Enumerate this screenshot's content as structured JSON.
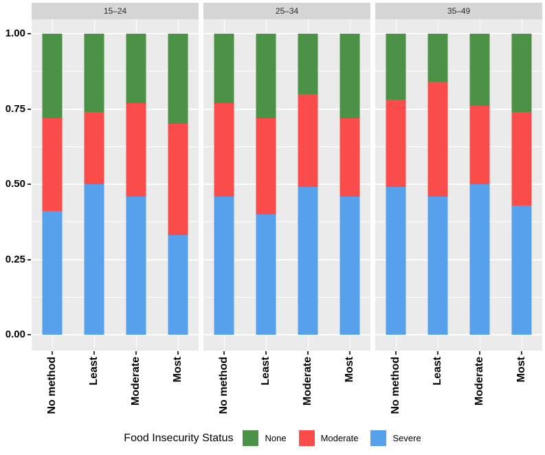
{
  "chart_data": {
    "type": "bar",
    "stacked": true,
    "orientation": "vertical",
    "facet_labels": [
      "15–24",
      "25–34",
      "35–49"
    ],
    "categories": [
      "No method",
      "Least",
      "Moderate",
      "Most"
    ],
    "ylim": [
      0,
      1
    ],
    "yticks": [
      1.0,
      0.75,
      0.5,
      0.25,
      0.0
    ],
    "ytick_labels": [
      "1.00",
      "0.75",
      "0.50",
      "0.25",
      "0.00"
    ],
    "grid": {
      "major": [
        0,
        0.25,
        0.5,
        0.75,
        1.0
      ],
      "minor": [
        0.125,
        0.375,
        0.625,
        0.875
      ]
    },
    "series": [
      {
        "name": "Severe",
        "color": "#57a1ec",
        "facet_values": [
          [
            0.41,
            0.5,
            0.46,
            0.33
          ],
          [
            0.46,
            0.4,
            0.49,
            0.46
          ],
          [
            0.49,
            0.46,
            0.5,
            0.43
          ]
        ]
      },
      {
        "name": "Moderate",
        "color": "#fb4c4c",
        "facet_values": [
          [
            0.31,
            0.24,
            0.31,
            0.37
          ],
          [
            0.31,
            0.32,
            0.31,
            0.26
          ],
          [
            0.29,
            0.38,
            0.26,
            0.31
          ]
        ]
      },
      {
        "name": "None",
        "color": "#4b9246",
        "facet_values": [
          [
            0.28,
            0.26,
            0.23,
            0.3
          ],
          [
            0.23,
            0.28,
            0.2,
            0.28
          ],
          [
            0.22,
            0.16,
            0.24,
            0.26
          ]
        ]
      }
    ],
    "legend_title": "Food Insecurity Status",
    "legend_items": [
      {
        "label": "None",
        "color": "#4b9246"
      },
      {
        "label": "Moderate",
        "color": "#fb4c4c"
      },
      {
        "label": "Severe",
        "color": "#57a1ec"
      }
    ],
    "panel_background": "#ebebeb",
    "strip_background": "#d6d6d6",
    "gridline_color": "#ffffff"
  }
}
